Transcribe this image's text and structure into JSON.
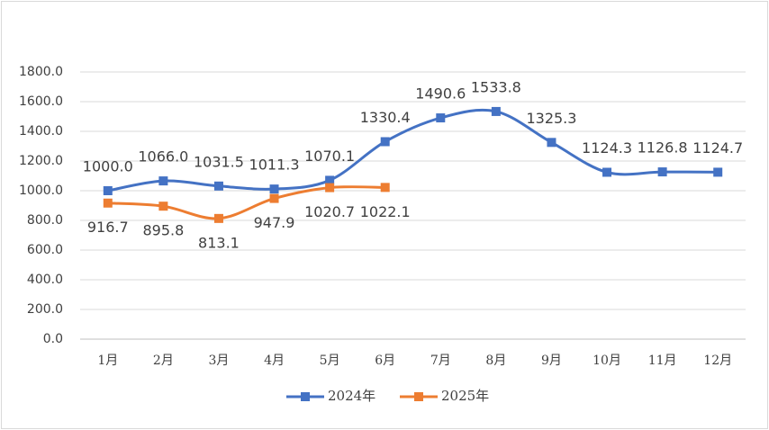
{
  "chart_data": {
    "type": "line",
    "categories": [
      "1月",
      "2月",
      "3月",
      "4月",
      "5月",
      "6月",
      "7月",
      "8月",
      "9月",
      "10月",
      "11月",
      "12月"
    ],
    "series": [
      {
        "name": "2024年",
        "color": "#4472c4",
        "values": [
          1000.0,
          1066.0,
          1031.5,
          1011.3,
          1070.1,
          1330.4,
          1490.6,
          1533.8,
          1325.3,
          1124.3,
          1126.8,
          1124.7
        ],
        "value_labels": [
          "1000.0",
          "1066.0",
          "1031.5",
          "1011.3",
          "1070.1",
          "1330.4",
          "1490.6",
          "1533.8",
          "1325.3",
          "1124.3",
          "1126.8",
          "1124.7"
        ]
      },
      {
        "name": "2025年",
        "color": "#ed7d31",
        "values": [
          916.7,
          895.8,
          813.1,
          947.9,
          1020.7,
          1022.1,
          null,
          null,
          null,
          null,
          null,
          null
        ],
        "value_labels": [
          "916.7",
          "895.8",
          "813.1",
          "947.9",
          "1020.7",
          "1022.1",
          null,
          null,
          null,
          null,
          null,
          null
        ]
      }
    ],
    "ylim": [
      0,
      1800
    ],
    "yticks": [
      {
        "value": 0,
        "label": "0.0"
      },
      {
        "value": 200,
        "label": "200.0"
      },
      {
        "value": 400,
        "label": "400.0"
      },
      {
        "value": 600,
        "label": "600.0"
      },
      {
        "value": 800,
        "label": "800.0"
      },
      {
        "value": 1000,
        "label": "1000.0"
      },
      {
        "value": 1200,
        "label": "1200.0"
      },
      {
        "value": 1400,
        "label": "1400.0"
      },
      {
        "value": 1600,
        "label": "1600.0"
      },
      {
        "value": 1800,
        "label": "1800.0"
      }
    ],
    "grid": true,
    "legend": "bottom"
  }
}
